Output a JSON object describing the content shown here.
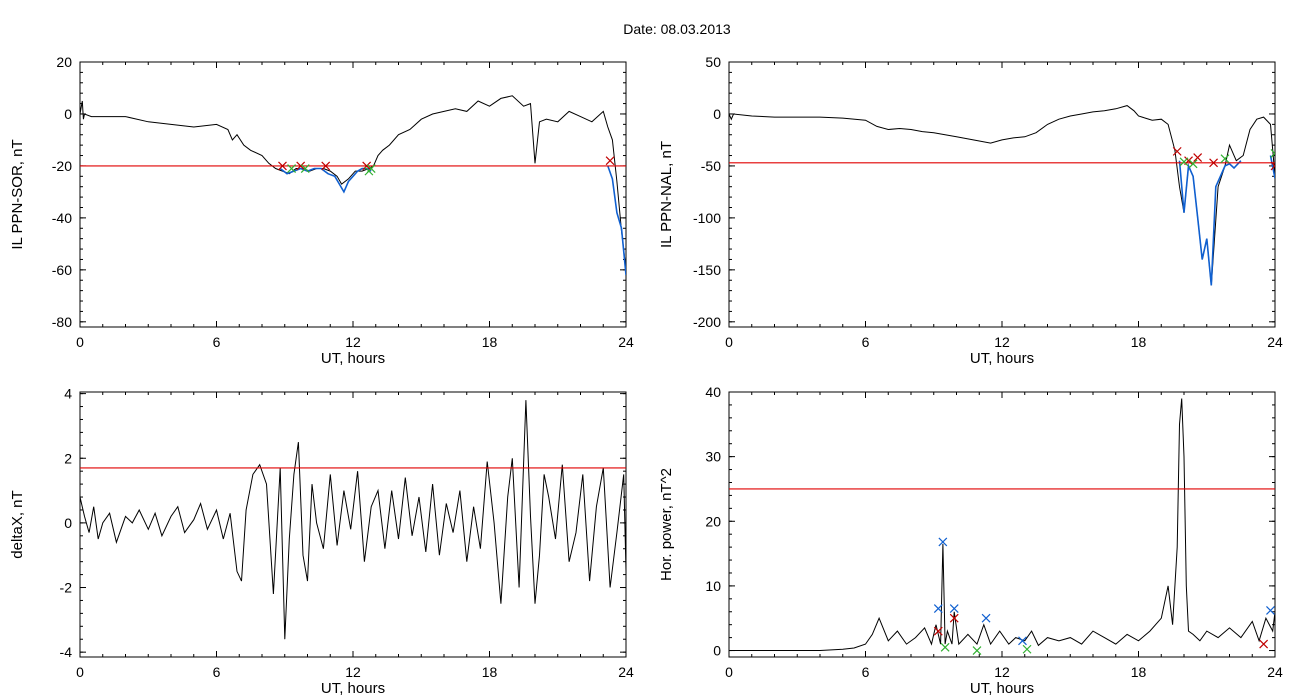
{
  "figure": {
    "title": "Date:  08.03.2013"
  },
  "colors": {
    "line": "#000000",
    "threshold": "#e00000",
    "segment": "#1060d0",
    "marker_red": "#c00000",
    "marker_green": "#30b030",
    "marker_blue": "#1060d0"
  },
  "chart_data": [
    {
      "id": "p1",
      "type": "line",
      "xlabel": "UT, hours",
      "ylabel": "IL PPN-SOR, nT",
      "xlim": [
        0,
        24
      ],
      "ylim": [
        -82,
        20
      ],
      "xticks": [
        0,
        6,
        12,
        18,
        24
      ],
      "yticks": [
        20,
        0,
        -20,
        -40,
        -60,
        -80
      ],
      "threshold": -20,
      "series": [
        {
          "role": "main",
          "x": [
            0,
            0.1,
            0.15,
            0.2,
            0.5,
            1,
            2,
            3,
            4,
            5,
            6,
            6.5,
            6.7,
            6.9,
            7.2,
            7.5,
            8,
            8.3,
            8.6,
            8.9,
            9.2,
            9.5,
            9.8,
            10.1,
            10.4,
            10.7,
            11,
            11.3,
            11.5,
            11.8,
            12.1,
            12.4,
            12.7,
            12.9,
            13.1,
            13.3,
            13.6,
            14,
            14.5,
            15,
            15.5,
            16,
            16.5,
            17,
            17.5,
            18,
            18.5,
            19,
            19.5,
            19.8,
            20,
            20.2,
            20.5,
            21,
            21.5,
            22,
            22.5,
            23,
            23.2,
            23.4,
            23.6,
            23.8,
            24
          ],
          "y": [
            0,
            5,
            -2,
            0,
            -1,
            -1,
            -1,
            -3,
            -4,
            -5,
            -4,
            -6,
            -10,
            -8,
            -12,
            -14,
            -16,
            -19,
            -21,
            -22,
            -23,
            -21,
            -21,
            -22,
            -21,
            -21,
            -22,
            -24,
            -27,
            -25,
            -22,
            -22,
            -21,
            -20,
            -16,
            -14,
            -12,
            -8,
            -6,
            -2,
            0,
            1,
            2,
            1,
            5,
            3,
            6,
            7,
            3,
            4,
            -19,
            -3,
            -2,
            -3,
            1,
            -1,
            -3,
            1,
            -5,
            -10,
            -26,
            -45,
            -60
          ]
        },
        {
          "role": "segment",
          "x": [
            8.8,
            9.1,
            9.4,
            9.7,
            10,
            10.3,
            10.6,
            10.9,
            11.2,
            11.4,
            11.6,
            11.8,
            12,
            12.2,
            12.4,
            12.6,
            12.8
          ],
          "y": [
            -21,
            -23,
            -22,
            -21,
            -22,
            -21,
            -21,
            -23,
            -24,
            -27,
            -30,
            -26,
            -24,
            -22,
            -21,
            -21,
            -22
          ]
        },
        {
          "role": "segment",
          "x": [
            23.2,
            23.4,
            23.6,
            23.8,
            24
          ],
          "y": [
            -20,
            -25,
            -38,
            -44,
            -62
          ]
        }
      ],
      "markers": [
        {
          "x": 8.9,
          "y": -20,
          "c": "marker_red"
        },
        {
          "x": 9.7,
          "y": -20,
          "c": "marker_red"
        },
        {
          "x": 10.8,
          "y": -20,
          "c": "marker_red"
        },
        {
          "x": 12.6,
          "y": -20,
          "c": "marker_red"
        },
        {
          "x": 23.3,
          "y": -18,
          "c": "marker_red"
        },
        {
          "x": 9.3,
          "y": -21,
          "c": "marker_green"
        },
        {
          "x": 9.9,
          "y": -21,
          "c": "marker_green"
        },
        {
          "x": 12.7,
          "y": -22,
          "c": "marker_green"
        },
        {
          "x": 12.8,
          "y": -21,
          "c": "marker_green"
        }
      ]
    },
    {
      "id": "p2",
      "type": "line",
      "xlabel": "UT, hours",
      "ylabel": "IL PPN-NAL, nT",
      "xlim": [
        0,
        24
      ],
      "ylim": [
        -205,
        50
      ],
      "xticks": [
        0,
        6,
        12,
        18,
        24
      ],
      "yticks": [
        50,
        0,
        -50,
        -100,
        -150,
        -200
      ],
      "threshold": -47,
      "series": [
        {
          "role": "main",
          "x": [
            0,
            0.1,
            0.2,
            1,
            2,
            3,
            4,
            5,
            6,
            6.5,
            7,
            7.5,
            8,
            8.5,
            9,
            9.5,
            10,
            10.5,
            11,
            11.5,
            12,
            12.5,
            13,
            13.5,
            14,
            14.5,
            15,
            15.5,
            16,
            16.5,
            17,
            17.5,
            17.8,
            18,
            18.3,
            18.6,
            19,
            19.3,
            19.6,
            19.8,
            20,
            20.2,
            20.4,
            20.6,
            20.8,
            21,
            21.2,
            21.5,
            21.8,
            22,
            22.3,
            22.6,
            22.9,
            23.2,
            23.5,
            23.8,
            24
          ],
          "y": [
            0,
            -5,
            0,
            -2,
            -3,
            -3,
            -3,
            -4,
            -6,
            -12,
            -15,
            -14,
            -15,
            -17,
            -18,
            -20,
            -22,
            -24,
            -26,
            -28,
            -25,
            -23,
            -22,
            -18,
            -10,
            -5,
            -2,
            0,
            2,
            3,
            5,
            8,
            3,
            -2,
            -4,
            -6,
            -5,
            -10,
            -35,
            -70,
            -95,
            -50,
            -60,
            -100,
            -140,
            -120,
            -165,
            -70,
            -50,
            -30,
            -45,
            -40,
            -15,
            -5,
            -3,
            -10,
            -60
          ]
        },
        {
          "role": "segment",
          "x": [
            19.8,
            20,
            20.2,
            20.4,
            20.6,
            20.8,
            21,
            21.2,
            21.4,
            21.6,
            21.8,
            22,
            22.2,
            22.5
          ],
          "y": [
            -45,
            -95,
            -50,
            -60,
            -100,
            -140,
            -120,
            -165,
            -70,
            -60,
            -50,
            -48,
            -52,
            -45
          ]
        },
        {
          "role": "segment",
          "x": [
            23.8,
            24
          ],
          "y": [
            -40,
            -62
          ]
        }
      ],
      "markers": [
        {
          "x": 19.7,
          "y": -36,
          "c": "marker_red"
        },
        {
          "x": 20.2,
          "y": -45,
          "c": "marker_red"
        },
        {
          "x": 20.6,
          "y": -42,
          "c": "marker_red"
        },
        {
          "x": 21.3,
          "y": -47,
          "c": "marker_red"
        },
        {
          "x": 24,
          "y": -50,
          "c": "marker_red"
        },
        {
          "x": 20,
          "y": -46,
          "c": "marker_green"
        },
        {
          "x": 20.4,
          "y": -48,
          "c": "marker_green"
        },
        {
          "x": 21.8,
          "y": -43,
          "c": "marker_green"
        },
        {
          "x": 24,
          "y": -38,
          "c": "marker_green"
        }
      ]
    },
    {
      "id": "p3",
      "type": "line",
      "xlabel": "UT, hours",
      "ylabel": "deltaX, nT",
      "xlim": [
        0,
        24
      ],
      "ylim": [
        -4.15,
        4.05
      ],
      "xticks": [
        0,
        6,
        12,
        18,
        24
      ],
      "yticks": [
        4,
        2,
        0,
        -2,
        -4
      ],
      "threshold": 1.7,
      "series": [
        {
          "role": "main",
          "x": [
            0,
            0.2,
            0.4,
            0.6,
            0.8,
            1,
            1.3,
            1.6,
            2,
            2.3,
            2.6,
            3,
            3.3,
            3.6,
            4,
            4.3,
            4.6,
            5,
            5.3,
            5.6,
            6,
            6.3,
            6.6,
            6.9,
            7.1,
            7.3,
            7.6,
            7.9,
            8.2,
            8.5,
            8.8,
            9,
            9.2,
            9.4,
            9.6,
            9.8,
            10,
            10.2,
            10.4,
            10.7,
            11,
            11.3,
            11.6,
            11.9,
            12.2,
            12.5,
            12.8,
            13.1,
            13.4,
            13.7,
            14,
            14.3,
            14.6,
            14.9,
            15.2,
            15.5,
            15.8,
            16.1,
            16.4,
            16.7,
            17,
            17.3,
            17.6,
            17.9,
            18.2,
            18.5,
            18.8,
            19,
            19.3,
            19.6,
            19.8,
            20,
            20.2,
            20.4,
            20.6,
            20.9,
            21.2,
            21.5,
            21.8,
            22.1,
            22.4,
            22.7,
            23,
            23.3,
            23.6,
            23.9,
            24
          ],
          "y": [
            0.8,
            0.2,
            -0.3,
            0.5,
            -0.5,
            0,
            0.3,
            -0.6,
            0.2,
            0,
            0.4,
            -0.2,
            0.3,
            -0.4,
            0.2,
            0.5,
            -0.3,
            0.1,
            0.6,
            -0.2,
            0.4,
            -0.5,
            0.3,
            -1.5,
            -1.8,
            0.4,
            1.5,
            1.8,
            1.2,
            -2.2,
            1.7,
            -3.6,
            -0.5,
            1.5,
            2.5,
            -1,
            -1.8,
            1.2,
            0,
            -0.8,
            1.5,
            -0.7,
            1,
            -0.2,
            1.6,
            -1.2,
            0.5,
            1,
            -0.8,
            1,
            -0.5,
            1.4,
            -0.4,
            0.8,
            -0.9,
            1.2,
            -1,
            0.6,
            -0.3,
            1,
            -1.2,
            0.5,
            -0.8,
            1.9,
            0,
            -2.5,
            0.8,
            2,
            -2,
            3.8,
            0.2,
            -2.5,
            -1,
            1.5,
            0.8,
            -0.5,
            1.8,
            -1.2,
            -0.3,
            1.5,
            -1.8,
            0.5,
            1.7,
            -2,
            -0.3,
            1.5,
            -1.5
          ]
        }
      ],
      "markers": []
    },
    {
      "id": "p4",
      "type": "line",
      "xlabel": "UT, hours",
      "ylabel": "Hor. power, nT^2",
      "xlim": [
        0,
        24
      ],
      "ylim": [
        -1,
        40
      ],
      "xticks": [
        0,
        6,
        12,
        18,
        24
      ],
      "yticks": [
        40,
        30,
        20,
        10,
        0
      ],
      "threshold": 25,
      "series": [
        {
          "role": "main",
          "x": [
            0,
            1,
            2,
            3,
            4,
            5,
            5.5,
            6,
            6.3,
            6.6,
            7,
            7.4,
            7.8,
            8.2,
            8.6,
            8.9,
            9.1,
            9.3,
            9.4,
            9.5,
            9.6,
            9.8,
            9.9,
            10.1,
            10.5,
            10.9,
            11.2,
            11.5,
            11.9,
            12.3,
            12.6,
            13,
            13.3,
            13.6,
            14,
            14.5,
            15,
            15.5,
            16,
            16.5,
            17,
            17.5,
            18,
            18.5,
            19,
            19.3,
            19.5,
            19.7,
            19.8,
            19.9,
            20,
            20.1,
            20.2,
            20.4,
            20.7,
            21,
            21.5,
            22,
            22.5,
            23,
            23.3,
            23.6,
            23.9,
            24
          ],
          "y": [
            0,
            0,
            0,
            0,
            0,
            0.2,
            0.4,
            1,
            2.5,
            5,
            1.5,
            3,
            1,
            2,
            3.5,
            1,
            4,
            1,
            16.5,
            1,
            3,
            1,
            6,
            1,
            2.5,
            1,
            4,
            1,
            3,
            1,
            2,
            1.5,
            3,
            0.8,
            2,
            1.5,
            2,
            1,
            3,
            2,
            1,
            2.5,
            1.5,
            3,
            5,
            10,
            4,
            16,
            35,
            39,
            30,
            10,
            3,
            2.5,
            1.5,
            3,
            2,
            3.5,
            2,
            4.5,
            1.5,
            5,
            3,
            6
          ]
        }
      ],
      "markers": [
        {
          "x": 9.4,
          "y": 16.8,
          "c": "marker_blue"
        },
        {
          "x": 9.2,
          "y": 6.5,
          "c": "marker_blue"
        },
        {
          "x": 9.9,
          "y": 6.5,
          "c": "marker_blue"
        },
        {
          "x": 11.3,
          "y": 5,
          "c": "marker_blue"
        },
        {
          "x": 12.9,
          "y": 1.5,
          "c": "marker_blue"
        },
        {
          "x": 23.8,
          "y": 6.2,
          "c": "marker_blue"
        },
        {
          "x": 9.2,
          "y": 3,
          "c": "marker_red"
        },
        {
          "x": 9.9,
          "y": 5,
          "c": "marker_red"
        },
        {
          "x": 23.5,
          "y": 1,
          "c": "marker_red"
        },
        {
          "x": 9.5,
          "y": 0.5,
          "c": "marker_green"
        },
        {
          "x": 10.9,
          "y": 0,
          "c": "marker_green"
        },
        {
          "x": 13.1,
          "y": 0.2,
          "c": "marker_green"
        }
      ]
    }
  ]
}
